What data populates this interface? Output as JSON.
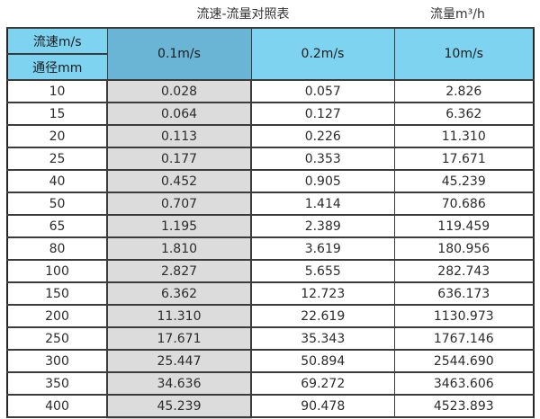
{
  "titles": {
    "main": "流速-流量对照表",
    "unit": "流量m³/h"
  },
  "table": {
    "corner_top": "流速m/s",
    "corner_bottom": "通径mm",
    "col_headers": [
      "0.1m/s",
      "0.2m/s",
      "10m/s"
    ],
    "rows": [
      [
        "10",
        "0.028",
        "0.057",
        "2.826"
      ],
      [
        "15",
        "0.064",
        "0.127",
        "6.362"
      ],
      [
        "20",
        "0.113",
        "0.226",
        "11.310"
      ],
      [
        "25",
        "0.177",
        "0.353",
        "17.671"
      ],
      [
        "40",
        "0.452",
        "0.905",
        "45.239"
      ],
      [
        "50",
        "0.707",
        "1.414",
        "70.686"
      ],
      [
        "65",
        "1.195",
        "2.389",
        "119.459"
      ],
      [
        "80",
        "1.810",
        "3.619",
        "180.956"
      ],
      [
        "100",
        "2.827",
        "5.655",
        "282.743"
      ],
      [
        "150",
        "6.362",
        "12.723",
        "636.173"
      ],
      [
        "200",
        "11.310",
        "22.619",
        "1130.973"
      ],
      [
        "250",
        "17.671",
        "35.343",
        "1767.146"
      ],
      [
        "300",
        "25.447",
        "50.894",
        "2544.690"
      ],
      [
        "350",
        "34.636",
        "69.272",
        "3463.606"
      ],
      [
        "400",
        "45.239",
        "90.478",
        "4523.893"
      ]
    ]
  },
  "colors": {
    "header_blue": "#7dd3f0",
    "highlight_blue": "#6ab4d6",
    "column_gray": "#dcdcdc",
    "border": "#3b3b3b"
  },
  "chart_data": {
    "type": "table",
    "title": "流速-流量对照表",
    "unit_label": "流量m³/h",
    "columns": [
      "通径mm",
      "0.1m/s",
      "0.2m/s",
      "10m/s"
    ],
    "rows": [
      [
        10,
        0.028,
        0.057,
        2.826
      ],
      [
        15,
        0.064,
        0.127,
        6.362
      ],
      [
        20,
        0.113,
        0.226,
        11.31
      ],
      [
        25,
        0.177,
        0.353,
        17.671
      ],
      [
        40,
        0.452,
        0.905,
        45.239
      ],
      [
        50,
        0.707,
        1.414,
        70.686
      ],
      [
        65,
        1.195,
        2.389,
        119.459
      ],
      [
        80,
        1.81,
        3.619,
        180.956
      ],
      [
        100,
        2.827,
        5.655,
        282.743
      ],
      [
        150,
        6.362,
        12.723,
        636.173
      ],
      [
        200,
        11.31,
        22.619,
        1130.973
      ],
      [
        250,
        17.671,
        35.343,
        1767.146
      ],
      [
        300,
        25.447,
        50.894,
        2544.69
      ],
      [
        350,
        34.636,
        69.272,
        3463.606
      ],
      [
        400,
        45.239,
        90.478,
        4523.893
      ]
    ]
  }
}
